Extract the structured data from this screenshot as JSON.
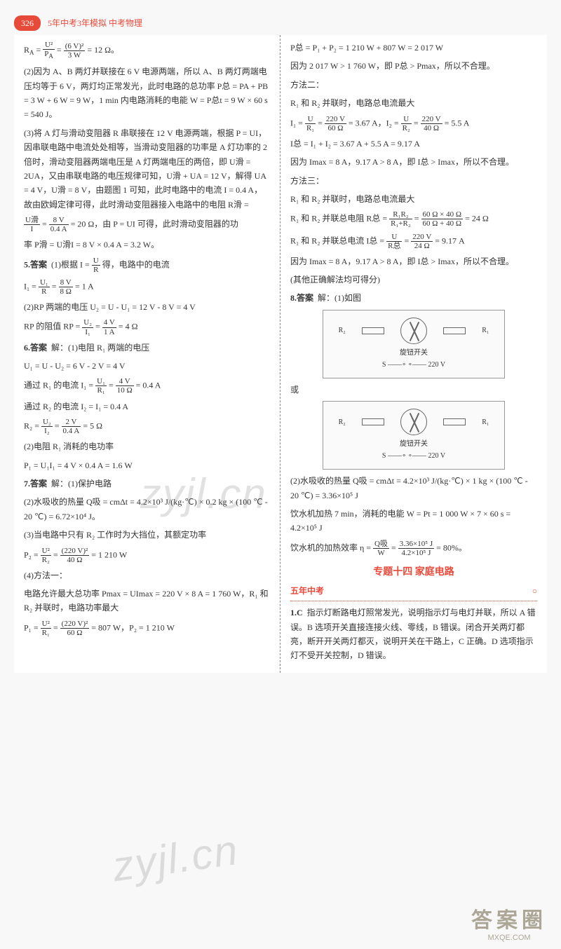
{
  "header": {
    "page_num": "326",
    "title": "5年中考3年模拟  中考物理"
  },
  "left": {
    "eq1_prefix": "R",
    "eq1_sub": "A",
    "eq1_frac1_num": "U²",
    "eq1_frac1_den": "P",
    "eq1_frac1_den_sub": "A",
    "eq1_frac2_num": "(6 V)²",
    "eq1_frac2_den": "3 W",
    "eq1_result": "= 12 Ω。",
    "p2": "(2)因为 A、B 两灯并联接在 6 V 电源两端，所以 A、B 两灯两端电压均等于 6 V，两灯均正常发光，此时电路的总功率 P总 = PA + PB = 3 W + 6 W = 9 W，1 min 内电路消耗的电能 W = P总t = 9 W × 60 s = 540 J。",
    "p3": "(3)将 A 灯与滑动变阻器 R 串联接在 12 V 电源两端，根据 P = UI，因串联电路中电流处处相等，当滑动变阻器的功率是 A 灯功率的 2 倍时，滑动变阻器两端电压是 A 灯两端电压的两倍，即 U滑 = 2UA，又由串联电路的电压规律可知，U滑 + UA = 12 V，解得 UA = 4 V，U滑 = 8 V，由题图 1 可知，此时电路中的电流 I = 0.4 A，故由欧姆定律可得，此时滑动变阻器接入电路中的电阻 R滑 =",
    "p3_frac_num": "U滑",
    "p3_frac_den": "I",
    "p3_mid": "=",
    "p3_frac2_num": "8 V",
    "p3_frac2_den": "0.4 A",
    "p3_end": "= 20 Ω，由 P = UI 可得，此时滑动变阻器的功",
    "p3_end2": "率 P滑 = U滑I = 8 V × 0.4 A = 3.2 W。",
    "q5_label": "5.答案",
    "q5_text": "(1)根据 I =",
    "q5_frac_num": "U",
    "q5_frac_den": "R",
    "q5_text2": "得，电路中的电流",
    "q5_line2_prefix": "I₁ =",
    "q5_line2_f1num": "U₁",
    "q5_line2_f1den": "R",
    "q5_line2_mid": "=",
    "q5_line2_f2num": "8 V",
    "q5_line2_f2den": "8 Ω",
    "q5_line2_end": "= 1 A",
    "q5_p2": "(2)RP 两端的电压 U₂ = U - U₁ = 12 V - 8 V = 4 V",
    "q5_p3_prefix": "RP 的阻值 RP =",
    "q5_p3_f1num": "U₂",
    "q5_p3_f1den": "I₁",
    "q5_p3_f2num": "4 V",
    "q5_p3_f2den": "1 A",
    "q5_p3_end": "= 4 Ω",
    "q6_label": "6.答案",
    "q6_text": "解：(1)电阻 R₁ 两端的电压",
    "q6_l1": "U₁ = U - U₂ = 6 V - 2 V = 4 V",
    "q6_l2_prefix": "通过 R₁ 的电流 I₁ =",
    "q6_l2_f1num": "U₁",
    "q6_l2_f1den": "R₁",
    "q6_l2_f2num": "4 V",
    "q6_l2_f2den": "10 Ω",
    "q6_l2_end": "= 0.4 A",
    "q6_l3": "通过 R₂ 的电流 I₂ = I₁ = 0.4 A",
    "q6_l4_prefix": "R₂ =",
    "q6_l4_f1num": "U₂",
    "q6_l4_f1den": "I₂",
    "q6_l4_f2num": "2 V",
    "q6_l4_f2den": "0.4 A",
    "q6_l4_end": "= 5 Ω",
    "q6_p2": "(2)电阻 R₁ 消耗的电功率",
    "q6_p2b": "P₁ = U₁I₁ = 4 V × 0.4 A = 1.6 W",
    "q7_label": "7.答案",
    "q7_text": "解：(1)保护电路",
    "q7_p2": "(2)水吸收的热量 Q吸 = cmΔt = 4.2×10³ J/(kg·℃) × 0.2 kg × (100 ℃ - 20 ℃) = 6.72×10⁴ J。",
    "q7_p3": "(3)当电路中只有 R₂ 工作时为大挡位，其额定功率",
    "q7_p3b_prefix": "P₂ =",
    "q7_p3b_f1num": "U²",
    "q7_p3b_f1den": "R₂",
    "q7_p3b_f2num": "(220 V)²",
    "q7_p3b_f2den": "40 Ω",
    "q7_p3b_end": "= 1 210 W",
    "q7_p4": "(4)方法一：",
    "q7_p4b": "电路允许最大总功率 Pmax = UImax = 220 V × 8 A = 1 760 W，R₁ 和 R₂ 并联时，电路功率最大",
    "q7_p4c_prefix": "P₁ =",
    "q7_p4c_f1num": "U²",
    "q7_p4c_f1den": "R₁",
    "q7_p4c_f2num": "(220 V)²",
    "q7_p4c_f2den": "60 Ω",
    "q7_p4c_end": "= 807 W，P₂ = 1 210 W"
  },
  "right": {
    "r1": "P总 = P₁ + P₂ = 1 210 W + 807 W = 2 017 W",
    "r2": "因为 2 017 W > 1 760 W，即 P总 > Pmax，所以不合理。",
    "r3": "方法二：",
    "r4": "R₁ 和 R₂ 并联时，电路总电流最大",
    "r5_prefix": "I₁ =",
    "r5_f1num": "U",
    "r5_f1den": "R₁",
    "r5_f2num": "220 V",
    "r5_f2den": "60 Ω",
    "r5_mid": "= 3.67 A，I₂ =",
    "r5_f3num": "U",
    "r5_f3den": "R₂",
    "r5_f4num": "220 V",
    "r5_f4den": "40 Ω",
    "r5_end": "= 5.5 A",
    "r6": "I总 = I₁ + I₂ = 3.67 A + 5.5 A = 9.17 A",
    "r7": "因为 Imax = 8 A，9.17 A > 8 A，即 I总 > Imax，所以不合理。",
    "r8": "方法三：",
    "r9": "R₁ 和 R₂ 并联时，电路总电流最大",
    "r10_prefix": "R₁ 和 R₂ 并联总电阻 R总 =",
    "r10_f1num": "R₁R₂",
    "r10_f1den": "R₁+R₂",
    "r10_f2num": "60 Ω × 40 Ω",
    "r10_f2den": "60 Ω + 40 Ω",
    "r10_end": "= 24 Ω",
    "r11_prefix": "R₁ 和 R₂ 并联总电流 I总 =",
    "r11_f1num": "U",
    "r11_f1den": "R总",
    "r11_f2num": "220 V",
    "r11_f2den": "24 Ω",
    "r11_end": "= 9.17 A",
    "r12": "因为 Imax = 8 A，9.17 A > 8 A，即 I总 > Imax，所以不合理。",
    "r13": "(其他正确解法均可得分)",
    "q8_label": "8.答案",
    "q8_text": "解：(1)如图",
    "circuit1_r2": "R₂",
    "circuit1_r1": "R₁",
    "circuit1_label": "旋钮开关",
    "circuit1_s": "S",
    "circuit1_v": "220 V",
    "or": "或",
    "q8_p2": "(2)水吸收的热量 Q吸 = cmΔt = 4.2×10³ J/(kg·℃) × 1 kg × (100 ℃ - 20 ℃) = 3.36×10⁵ J",
    "q8_p3": "饮水机加热 7 min，消耗的电能 W = Pt = 1 000 W × 7 × 60 s = 4.2×10⁵ J",
    "q8_p4_prefix": "饮水机的加热效率 η =",
    "q8_p4_f1num": "Q吸",
    "q8_p4_f1den": "W",
    "q8_p4_f2num": "3.36×10⁵ J",
    "q8_p4_f2den": "4.2×10⁵ J",
    "q8_p4_end": "= 80%。",
    "section": "专题十四  家庭电路",
    "sub": "五年中考",
    "q1_label": "1.C",
    "q1_text": "指示灯断路电灯照常发光，说明指示灯与电灯并联，所以 A 错误。B 选项开关直接连接火线、零线，B 错误。闭合开关两灯都亮，断开开关两灯都灭，说明开关在干路上，C 正确。D 选项指示灯不受开关控制，D 错误。"
  },
  "watermark": "zyjl.cn",
  "logo": {
    "big": "答案圈",
    "small": "MXQE.COM"
  },
  "colors": {
    "accent": "#e84a3a",
    "text": "#333333"
  }
}
